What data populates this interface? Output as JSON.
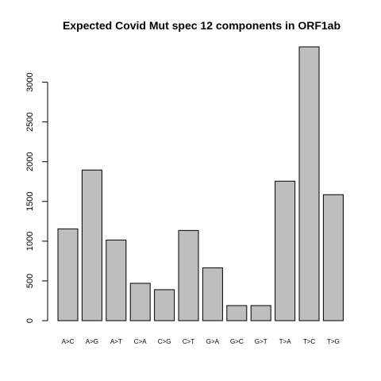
{
  "chart_data": {
    "type": "bar",
    "title": "Expected Covid Mut spec 12 components in ORF1ab",
    "xlabel": "",
    "ylabel": "",
    "categories": [
      "A>C",
      "A>G",
      "A>T",
      "C>A",
      "C>G",
      "C>T",
      "G>A",
      "G>C",
      "G>T",
      "T>A",
      "T>C",
      "T>G"
    ],
    "values": [
      1155,
      1895,
      1015,
      470,
      390,
      1135,
      665,
      190,
      190,
      1755,
      3445,
      1585
    ],
    "yticks": [
      0,
      500,
      1000,
      1500,
      2000,
      2500,
      3000
    ],
    "ylim": [
      0,
      3445
    ],
    "grid": false,
    "colors": {
      "bar_fill": "#bebebe",
      "bar_stroke": "#000000"
    }
  }
}
